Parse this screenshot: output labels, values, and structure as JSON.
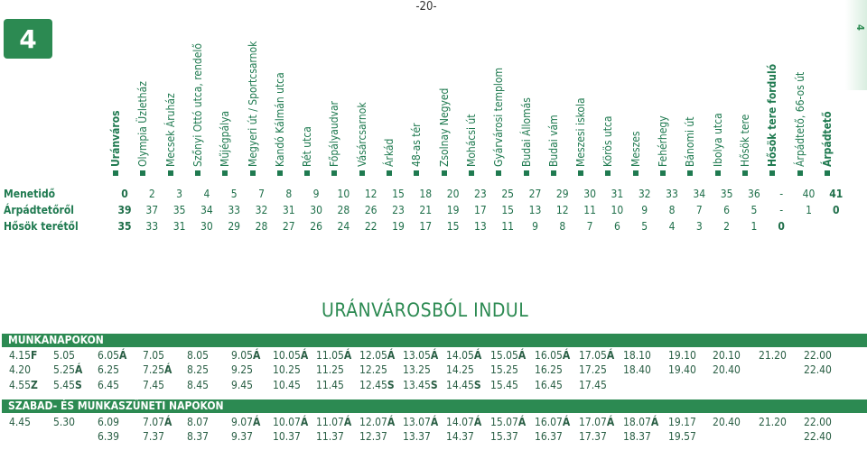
{
  "page_number": "-20-",
  "route_number": "4",
  "side_tab_number": "4",
  "title": "URÁNVÁROSBÓL INDUL",
  "stops": [
    {
      "name": "Uránváros",
      "bold": true
    },
    {
      "name": "Olympia Üzletház",
      "bold": false
    },
    {
      "name": "Mecsek Áruház",
      "bold": false
    },
    {
      "name": "Szőnyi Ottó utca, rendelő",
      "bold": false
    },
    {
      "name": "Műjégpálya",
      "bold": false
    },
    {
      "name": "Megyeri út / Sportcsarnok",
      "bold": false
    },
    {
      "name": "Kandó Kálmán utca",
      "bold": false
    },
    {
      "name": "Rét utca",
      "bold": false
    },
    {
      "name": "Főpályaudvar",
      "bold": false
    },
    {
      "name": "Vásárcsarnok",
      "bold": false
    },
    {
      "name": "Árkád",
      "bold": false
    },
    {
      "name": "48-as tér",
      "bold": false
    },
    {
      "name": "Zsolnay Negyed",
      "bold": false
    },
    {
      "name": "Mohácsi út",
      "bold": false
    },
    {
      "name": "Gyárvárosi templom",
      "bold": false
    },
    {
      "name": "Budai Állomás",
      "bold": false
    },
    {
      "name": "Budai vám",
      "bold": false
    },
    {
      "name": "Meszesi iskola",
      "bold": false
    },
    {
      "name": "Körös utca",
      "bold": false
    },
    {
      "name": "Meszes",
      "bold": false
    },
    {
      "name": "Fehérhegy",
      "bold": false
    },
    {
      "name": "Bánomi út",
      "bold": false
    },
    {
      "name": "Ibolya utca",
      "bold": false
    },
    {
      "name": "Hősök tere",
      "bold": false
    },
    {
      "name": "Hősök tere forduló",
      "bold": true
    },
    {
      "name": "Árpádtető, 66-os út",
      "bold": false
    },
    {
      "name": "Árpádtető",
      "bold": true
    }
  ],
  "rows": [
    {
      "label": "Menetidő",
      "values": [
        "0",
        "2",
        "3",
        "4",
        "5",
        "7",
        "8",
        "9",
        "10",
        "12",
        "15",
        "18",
        "20",
        "23",
        "25",
        "27",
        "29",
        "30",
        "31",
        "32",
        "33",
        "34",
        "35",
        "36",
        "-",
        "40",
        "41"
      ]
    },
    {
      "label": "Árpádtetőről",
      "values": [
        "39",
        "37",
        "35",
        "34",
        "33",
        "32",
        "31",
        "30",
        "28",
        "26",
        "23",
        "21",
        "19",
        "17",
        "15",
        "13",
        "12",
        "11",
        "10",
        "9",
        "8",
        "7",
        "6",
        "5",
        "-",
        "1",
        "0"
      ]
    },
    {
      "label": "Hősök terétől",
      "values": [
        "35",
        "33",
        "31",
        "30",
        "29",
        "28",
        "27",
        "26",
        "24",
        "22",
        "19",
        "17",
        "15",
        "13",
        "11",
        "9",
        "8",
        "7",
        "6",
        "5",
        "4",
        "3",
        "2",
        "1",
        "0",
        "",
        ""
      ]
    }
  ],
  "weekday": {
    "label": "MUNKANAPOKON",
    "rows": [
      [
        [
          "4.15",
          "F"
        ],
        [
          "5.05",
          ""
        ],
        [
          "6.05",
          "Á"
        ],
        [
          "7.05",
          ""
        ],
        [
          "8.05",
          ""
        ],
        [
          "9.05",
          "Á"
        ],
        [
          "10.05",
          "Á"
        ],
        [
          "11.05",
          "Á"
        ],
        [
          "12.05",
          "Á"
        ],
        [
          "13.05",
          "Á"
        ],
        [
          "14.05",
          "Á"
        ],
        [
          "15.05",
          "Á"
        ],
        [
          "16.05",
          "Á"
        ],
        [
          "17.05",
          "Á"
        ],
        [
          "18.10",
          ""
        ],
        [
          "19.10",
          ""
        ],
        [
          "20.10",
          ""
        ],
        [
          "21.20",
          ""
        ],
        [
          "22.00",
          ""
        ]
      ],
      [
        [
          "4.20",
          ""
        ],
        [
          "5.25",
          "Á"
        ],
        [
          "6.25",
          ""
        ],
        [
          "7.25",
          "Á"
        ],
        [
          "8.25",
          ""
        ],
        [
          "9.25",
          ""
        ],
        [
          "10.25",
          ""
        ],
        [
          "11.25",
          ""
        ],
        [
          "12.25",
          ""
        ],
        [
          "13.25",
          ""
        ],
        [
          "14.25",
          ""
        ],
        [
          "15.25",
          ""
        ],
        [
          "16.25",
          ""
        ],
        [
          "17.25",
          ""
        ],
        [
          "18.40",
          ""
        ],
        [
          "19.40",
          ""
        ],
        [
          "20.40",
          ""
        ],
        [
          "",
          ""
        ],
        [
          "22.40",
          ""
        ]
      ],
      [
        [
          "4.55",
          "Z"
        ],
        [
          "5.45",
          "S"
        ],
        [
          "6.45",
          ""
        ],
        [
          "7.45",
          ""
        ],
        [
          "8.45",
          ""
        ],
        [
          "9.45",
          ""
        ],
        [
          "10.45",
          ""
        ],
        [
          "11.45",
          ""
        ],
        [
          "12.45",
          "S"
        ],
        [
          "13.45",
          "S"
        ],
        [
          "14.45",
          "S"
        ],
        [
          "15.45",
          ""
        ],
        [
          "16.45",
          ""
        ],
        [
          "17.45",
          ""
        ],
        [
          "",
          ""
        ],
        [
          "",
          ""
        ],
        [
          "",
          ""
        ],
        [
          "",
          ""
        ],
        [
          "",
          ""
        ]
      ]
    ]
  },
  "holiday": {
    "label": "SZABAD- ÉS MUNKASZÜNETI NAPOKON",
    "rows": [
      [
        [
          "4.45",
          ""
        ],
        [
          "5.30",
          ""
        ],
        [
          "6.09",
          ""
        ],
        [
          "7.07",
          "Á"
        ],
        [
          "8.07",
          ""
        ],
        [
          "9.07",
          "Á"
        ],
        [
          "10.07",
          "Á"
        ],
        [
          "11.07",
          "Á"
        ],
        [
          "12.07",
          "Á"
        ],
        [
          "13.07",
          "Á"
        ],
        [
          "14.07",
          "Á"
        ],
        [
          "15.07",
          "Á"
        ],
        [
          "16.07",
          "Á"
        ],
        [
          "17.07",
          "Á"
        ],
        [
          "18.07",
          "Á"
        ],
        [
          "19.17",
          ""
        ],
        [
          "20.40",
          ""
        ],
        [
          "21.20",
          ""
        ],
        [
          "22.00",
          ""
        ]
      ],
      [
        [
          "",
          ""
        ],
        [
          "",
          ""
        ],
        [
          "6.39",
          ""
        ],
        [
          "7.37",
          ""
        ],
        [
          "8.37",
          ""
        ],
        [
          "9.37",
          ""
        ],
        [
          "10.37",
          ""
        ],
        [
          "11.37",
          ""
        ],
        [
          "12.37",
          ""
        ],
        [
          "13.37",
          ""
        ],
        [
          "14.37",
          ""
        ],
        [
          "15.37",
          ""
        ],
        [
          "16.37",
          ""
        ],
        [
          "17.37",
          ""
        ],
        [
          "18.37",
          ""
        ],
        [
          "19.57",
          ""
        ],
        [
          "",
          ""
        ],
        [
          "",
          ""
        ],
        [
          "22.40",
          ""
        ]
      ]
    ]
  },
  "colors": {
    "accent": "#2c8a52",
    "text": "#1f6f4a"
  }
}
